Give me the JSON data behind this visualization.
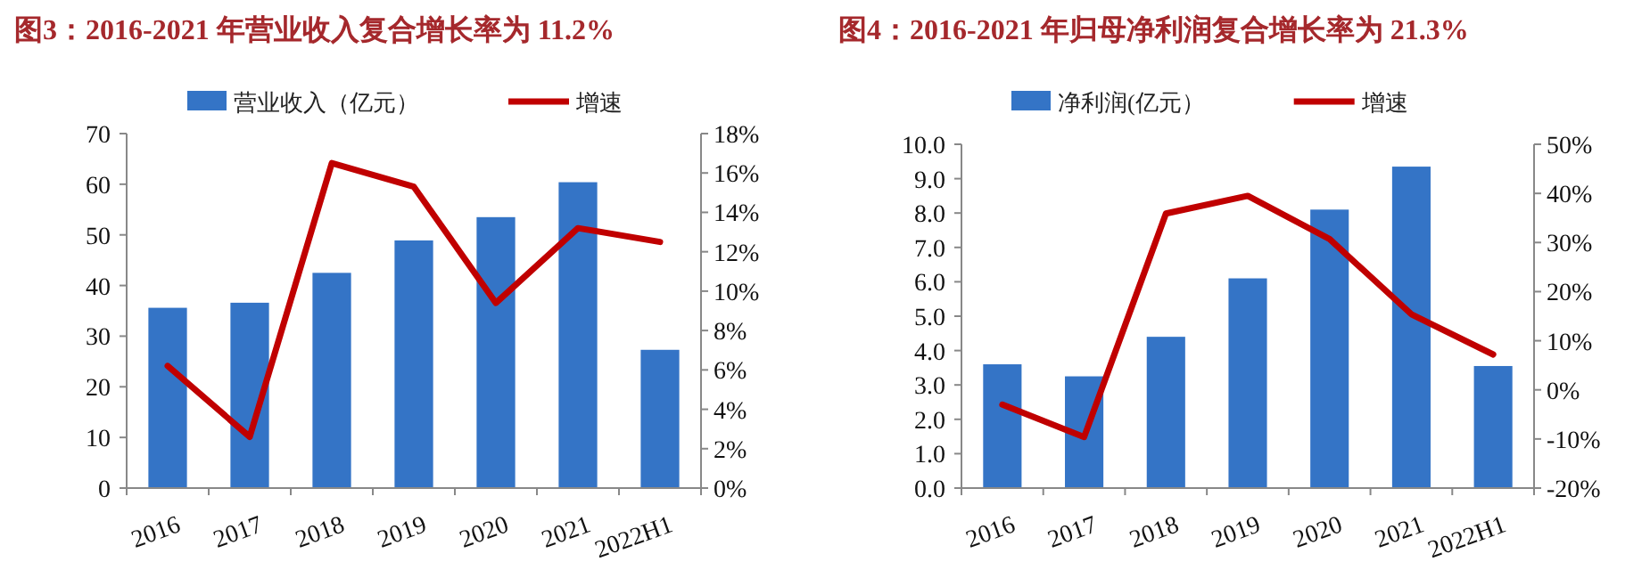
{
  "chart_data": [
    {
      "type": "bar",
      "title": "图3：2016-2021 年营业收入复合增长率为 11.2%",
      "categories": [
        "2016",
        "2017",
        "2018",
        "2019",
        "2020",
        "2021",
        "2022H1"
      ],
      "series": [
        {
          "name": "营业收入（亿元）",
          "color": "#3474c6",
          "values": [
            35.6,
            36.6,
            42.5,
            48.9,
            53.5,
            60.4,
            27.3
          ]
        },
        {
          "name": "增速",
          "type": "line",
          "axis": "y2",
          "color": "#c00000",
          "values": [
            6.2,
            2.6,
            16.5,
            15.3,
            9.4,
            13.2,
            12.5
          ]
        }
      ],
      "ylim": [
        0,
        70
      ],
      "yticks": [
        0,
        10,
        20,
        30,
        40,
        50,
        60,
        70
      ],
      "y2lim": [
        0,
        18
      ],
      "y2ticks": [
        {
          "value": 0,
          "label": "0%"
        },
        {
          "value": 2,
          "label": "2%"
        },
        {
          "value": 4,
          "label": "4%"
        },
        {
          "value": 6,
          "label": "6%"
        },
        {
          "value": 8,
          "label": "8%"
        },
        {
          "value": 10,
          "label": "10%"
        },
        {
          "value": 12,
          "label": "12%"
        },
        {
          "value": 14,
          "label": "14%"
        },
        {
          "value": 16,
          "label": "16%"
        },
        {
          "value": 18,
          "label": "18%"
        }
      ],
      "legend": "top",
      "grid": false,
      "marker": "none",
      "line_style": "solid"
    },
    {
      "type": "bar",
      "title": "图4：2016-2021 年归母净利润复合增长率为 21.3%",
      "categories": [
        "2016",
        "2017",
        "2018",
        "2019",
        "2020",
        "2021",
        "2022H1"
      ],
      "series": [
        {
          "name": "净利润(亿元）",
          "color": "#3474c6",
          "values": [
            3.6,
            3.25,
            4.4,
            6.1,
            8.1,
            9.35,
            3.55
          ]
        },
        {
          "name": "增速",
          "type": "line",
          "axis": "y2",
          "color": "#c00000",
          "values": [
            -3,
            -9.6,
            35.9,
            39.5,
            30.7,
            15.4,
            7.2
          ]
        }
      ],
      "ylim": [
        0,
        10
      ],
      "yticks": [
        {
          "value": 0,
          "label": "0.0"
        },
        {
          "value": 1,
          "label": "1.0"
        },
        {
          "value": 2,
          "label": "2.0"
        },
        {
          "value": 3,
          "label": "3.0"
        },
        {
          "value": 4,
          "label": "4.0"
        },
        {
          "value": 5,
          "label": "5.0"
        },
        {
          "value": 6,
          "label": "6.0"
        },
        {
          "value": 7,
          "label": "7.0"
        },
        {
          "value": 8,
          "label": "8.0"
        },
        {
          "value": 9,
          "label": "9.0"
        },
        {
          "value": 10,
          "label": "10.0"
        }
      ],
      "y2lim": [
        -20,
        50
      ],
      "y2ticks": [
        {
          "value": -20,
          "label": "-20%"
        },
        {
          "value": -10,
          "label": "-10%"
        },
        {
          "value": 0,
          "label": "0%"
        },
        {
          "value": 10,
          "label": "10%"
        },
        {
          "value": 20,
          "label": "20%"
        },
        {
          "value": 30,
          "label": "30%"
        },
        {
          "value": 40,
          "label": "40%"
        },
        {
          "value": 50,
          "label": "50%"
        }
      ],
      "legend": "top",
      "grid": false,
      "marker": "none",
      "line_style": "solid"
    }
  ]
}
